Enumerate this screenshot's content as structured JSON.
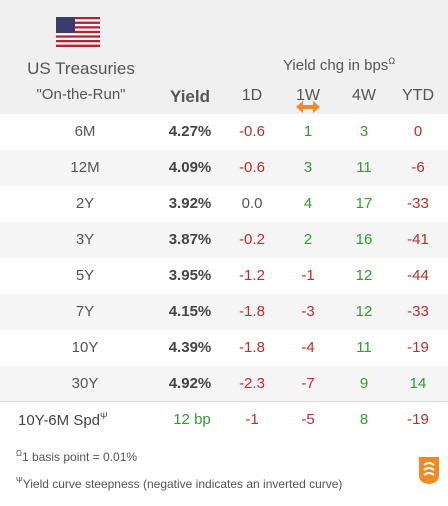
{
  "header": {
    "title_line1": "US Treasuries",
    "title_line2": "\"On-the-Run\"",
    "yield_label": "Yield",
    "change_group_label": "Yield chg in bps",
    "change_group_marker": "Ω",
    "columns": [
      "1D",
      "1W",
      "4W",
      "YTD"
    ],
    "flag_icon": "us-flag-icon",
    "sort_icon": "double-arrow-icon"
  },
  "rows": [
    {
      "term": "6M",
      "yield": "4.27%",
      "d1": "-0.6",
      "w1": "1",
      "w4": "3",
      "ytd": "0"
    },
    {
      "term": "12M",
      "yield": "4.09%",
      "d1": "-0.6",
      "w1": "3",
      "w4": "11",
      "ytd": "-6"
    },
    {
      "term": "2Y",
      "yield": "3.92%",
      "d1": "0.0",
      "w1": "4",
      "w4": "17",
      "ytd": "-33"
    },
    {
      "term": "3Y",
      "yield": "3.87%",
      "d1": "-0.2",
      "w1": "2",
      "w4": "16",
      "ytd": "-41"
    },
    {
      "term": "5Y",
      "yield": "3.95%",
      "d1": "-1.2",
      "w1": "-1",
      "w4": "12",
      "ytd": "-44"
    },
    {
      "term": "7Y",
      "yield": "4.15%",
      "d1": "-1.8",
      "w1": "-3",
      "w4": "12",
      "ytd": "-33"
    },
    {
      "term": "10Y",
      "yield": "4.39%",
      "d1": "-1.8",
      "w1": "-4",
      "w4": "11",
      "ytd": "-19"
    },
    {
      "term": "30Y",
      "yield": "4.92%",
      "d1": "-2.3",
      "w1": "-7",
      "w4": "9",
      "ytd": "14"
    }
  ],
  "spread": {
    "label": "10Y-6M Spd",
    "marker": "Ψ",
    "yield": "12 bp",
    "d1": "-1",
    "w1": "-5",
    "w4": "8",
    "ytd": "-19"
  },
  "footnotes": {
    "f1_marker": "Ω",
    "f1_text": "1 basis point = 0.01%",
    "f2_marker": "Ψ",
    "f2_text": "Yield curve steepness (negative indicates an inverted curve)"
  },
  "colors": {
    "positive": "#2e9d2e",
    "negative": "#c62828",
    "header_bg": "#f0f0f0",
    "logo": "#f08a24"
  }
}
